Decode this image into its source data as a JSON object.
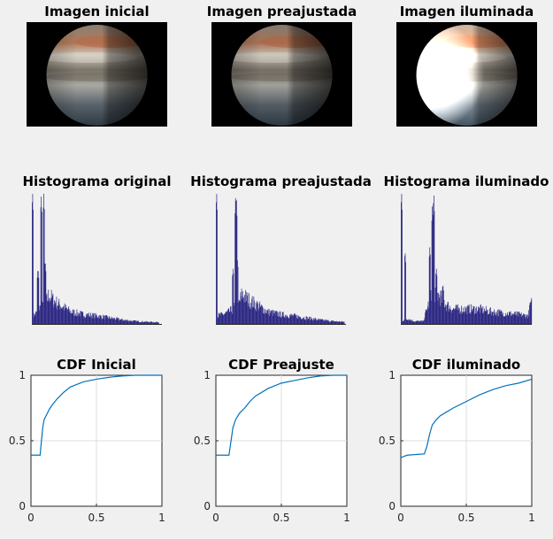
{
  "figure": {
    "background": "#f0f0f0",
    "axes_color": "#262626",
    "grid_color": "#dcdcdc",
    "hist_color": "#2e2a84",
    "cdf_color": "#0072bd"
  },
  "images": [
    {
      "title": "Imagen inicial",
      "brightness": 1.0
    },
    {
      "title": "Imagen preajustada",
      "brightness": 0.95
    },
    {
      "title": "Imagen iluminada",
      "brightness": 1.45
    }
  ],
  "chart_data": [
    {
      "type": "bar",
      "title": "Histograma original",
      "xlabel": "",
      "ylabel": "",
      "xlim": [
        0,
        1
      ],
      "peaks": [
        [
          0.003,
          1.0
        ],
        [
          0.045,
          0.42
        ],
        [
          0.07,
          0.97
        ],
        [
          0.09,
          0.98
        ],
        [
          0.1,
          0.48
        ]
      ],
      "envelope": [
        [
          0,
          0.06
        ],
        [
          0.02,
          0.07
        ],
        [
          0.04,
          0.09
        ],
        [
          0.06,
          0.12
        ],
        [
          0.1,
          0.14
        ],
        [
          0.13,
          0.22
        ],
        [
          0.16,
          0.18
        ],
        [
          0.2,
          0.15
        ],
        [
          0.25,
          0.12
        ],
        [
          0.3,
          0.09
        ],
        [
          0.4,
          0.07
        ],
        [
          0.5,
          0.06
        ],
        [
          0.6,
          0.045
        ],
        [
          0.7,
          0.03
        ],
        [
          0.8,
          0.02
        ],
        [
          0.9,
          0.015
        ],
        [
          1.0,
          0.012
        ]
      ],
      "zero_after": 0.98
    },
    {
      "type": "bar",
      "title": "Histograma preajustada",
      "xlabel": "",
      "ylabel": "",
      "xlim": [
        0,
        1
      ],
      "peaks": [
        [
          0.003,
          1.0
        ],
        [
          0.13,
          0.42
        ],
        [
          0.15,
          0.97
        ],
        [
          0.155,
          0.98
        ],
        [
          0.165,
          0.48
        ]
      ],
      "envelope": [
        [
          0,
          0.06
        ],
        [
          0.05,
          0.07
        ],
        [
          0.1,
          0.09
        ],
        [
          0.14,
          0.12
        ],
        [
          0.17,
          0.14
        ],
        [
          0.2,
          0.22
        ],
        [
          0.25,
          0.18
        ],
        [
          0.3,
          0.15
        ],
        [
          0.35,
          0.12
        ],
        [
          0.4,
          0.09
        ],
        [
          0.5,
          0.07
        ],
        [
          0.6,
          0.06
        ],
        [
          0.7,
          0.045
        ],
        [
          0.8,
          0.03
        ],
        [
          0.9,
          0.02
        ],
        [
          1.0,
          0.015
        ]
      ],
      "zero_after": 0.99
    },
    {
      "type": "bar",
      "title": "Histograma iluminado",
      "xlabel": "",
      "ylabel": "",
      "xlim": [
        0,
        1
      ],
      "peaks": [
        [
          0.003,
          1.0
        ],
        [
          0.03,
          0.55
        ],
        [
          0.22,
          0.58
        ],
        [
          0.24,
          0.9
        ],
        [
          0.25,
          0.99
        ],
        [
          0.27,
          0.42
        ],
        [
          0.32,
          0.3
        ],
        [
          0.99,
          0.17
        ]
      ],
      "envelope": [
        [
          0,
          0.02
        ],
        [
          0.05,
          0.04
        ],
        [
          0.1,
          0.02
        ],
        [
          0.17,
          0.02
        ],
        [
          0.2,
          0.12
        ],
        [
          0.25,
          0.25
        ],
        [
          0.3,
          0.2
        ],
        [
          0.35,
          0.14
        ],
        [
          0.4,
          0.11
        ],
        [
          0.5,
          0.11
        ],
        [
          0.6,
          0.11
        ],
        [
          0.7,
          0.09
        ],
        [
          0.8,
          0.08
        ],
        [
          0.9,
          0.07
        ],
        [
          0.97,
          0.06
        ],
        [
          1.0,
          0.15
        ]
      ],
      "zero_after": 1.0
    },
    {
      "type": "line",
      "title": "CDF Inicial",
      "xlabel": "",
      "ylabel": "",
      "xlim": [
        0,
        1
      ],
      "ylim": [
        0,
        1
      ],
      "xticks": [
        "0",
        "0.5",
        "1"
      ],
      "yticks": [
        "0",
        "0.5",
        "1"
      ],
      "grid": true,
      "x": [
        0,
        0.07,
        0.075,
        0.09,
        0.1,
        0.12,
        0.14,
        0.16,
        0.2,
        0.25,
        0.3,
        0.4,
        0.5,
        0.6,
        0.7,
        0.8,
        1.0
      ],
      "y": [
        0.39,
        0.39,
        0.45,
        0.6,
        0.66,
        0.7,
        0.74,
        0.77,
        0.82,
        0.87,
        0.91,
        0.95,
        0.97,
        0.985,
        0.995,
        1.0,
        1.0
      ]
    },
    {
      "type": "line",
      "title": "CDF Preajuste",
      "xlabel": "",
      "ylabel": "",
      "xlim": [
        0,
        1
      ],
      "ylim": [
        0,
        1
      ],
      "xticks": [
        "0",
        "0.5",
        "1"
      ],
      "yticks": [
        "0",
        "0.5",
        "1"
      ],
      "grid": true,
      "x": [
        0,
        0.1,
        0.11,
        0.13,
        0.15,
        0.18,
        0.22,
        0.26,
        0.3,
        0.4,
        0.5,
        0.6,
        0.7,
        0.8,
        0.9,
        1.0
      ],
      "y": [
        0.39,
        0.39,
        0.46,
        0.6,
        0.66,
        0.71,
        0.75,
        0.8,
        0.84,
        0.9,
        0.94,
        0.96,
        0.98,
        0.995,
        1.0,
        1.0
      ]
    },
    {
      "type": "line",
      "title": "CDF iluminado",
      "xlabel": "",
      "ylabel": "",
      "xlim": [
        0,
        1
      ],
      "ylim": [
        0,
        1
      ],
      "xticks": [
        "0",
        "0.5",
        "1"
      ],
      "yticks": [
        "0",
        "0.5",
        "1"
      ],
      "grid": true,
      "x": [
        0,
        0.02,
        0.05,
        0.18,
        0.2,
        0.22,
        0.24,
        0.27,
        0.3,
        0.35,
        0.4,
        0.5,
        0.6,
        0.7,
        0.8,
        0.9,
        1.0
      ],
      "y": [
        0.37,
        0.38,
        0.39,
        0.4,
        0.46,
        0.55,
        0.62,
        0.66,
        0.69,
        0.72,
        0.75,
        0.8,
        0.85,
        0.89,
        0.92,
        0.94,
        0.97
      ]
    }
  ]
}
